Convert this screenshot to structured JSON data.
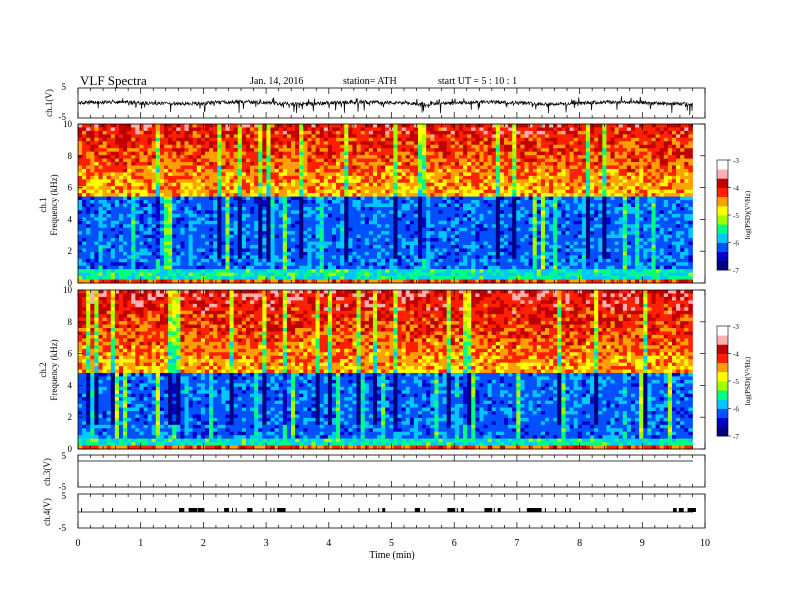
{
  "header": {
    "title": "VLF  Spectra",
    "date": "Jan. 14, 2016",
    "station": "station= ATH",
    "start_ut": "start  UT  =   5  : 10 : 1"
  },
  "chart_data": [
    {
      "id": "ch1-waveform",
      "type": "line",
      "ylabel": "ch.1(V)",
      "yticks": [
        "5",
        "-5"
      ],
      "ylim": [
        -5,
        5
      ],
      "xlim": [
        0,
        10
      ],
      "data_end_min": 9.8,
      "trace_color": "#000000"
    },
    {
      "id": "ch1-spectrogram",
      "type": "heatmap",
      "ylabel_top": "ch.1",
      "ylabel": "Frequency  (kHz)",
      "yticks": [
        "0",
        "2",
        "4",
        "6",
        "8",
        "10"
      ],
      "ylim": [
        0,
        10
      ],
      "xlim": [
        0,
        10
      ],
      "data_end_min": 9.8,
      "colorbar": {
        "label": "log(PSD)(V²/Hz)",
        "ticks": [
          "-3",
          "-4",
          "-5",
          "-6",
          "-7"
        ],
        "range": [
          -7,
          -3
        ]
      },
      "quiet_band_khz": [
        0.8,
        5.5
      ]
    },
    {
      "id": "ch2-spectrogram",
      "type": "heatmap",
      "ylabel_top": "ch.2",
      "ylabel": "Frequency  (kHz)",
      "yticks": [
        "0",
        "2",
        "4",
        "6",
        "8",
        "10"
      ],
      "ylim": [
        0,
        10
      ],
      "xlim": [
        0,
        10
      ],
      "data_end_min": 9.8,
      "colorbar": {
        "label": "log(PSD)(V²/Hz)",
        "ticks": [
          "-3",
          "-4",
          "-5",
          "-6",
          "-7"
        ],
        "range": [
          -7,
          -3
        ]
      },
      "quiet_band_khz": [
        0.6,
        4.8
      ]
    },
    {
      "id": "ch3-waveform",
      "type": "line",
      "ylabel": "ch.3(V)",
      "yticks": [
        "5",
        "-5"
      ],
      "ylim": [
        -5,
        5
      ],
      "xlim": [
        0,
        10
      ],
      "data_end_min": 9.8,
      "trace_color": "#000000"
    },
    {
      "id": "ch4-waveform",
      "type": "line",
      "ylabel": "ch.4(V)",
      "yticks": [
        "5",
        "-5"
      ],
      "ylim": [
        -5,
        5
      ],
      "xlim": [
        0,
        10
      ],
      "data_end_min": 9.8,
      "trace_color": "#000000"
    }
  ],
  "x_axis": {
    "label": "Time  (min)",
    "ticks": [
      "0",
      "1",
      "2",
      "3",
      "4",
      "5",
      "6",
      "7",
      "8",
      "9",
      "10"
    ],
    "range": [
      0,
      10
    ]
  },
  "colormap": [
    "#000080",
    "#0000c8",
    "#0050ff",
    "#00c8ff",
    "#00ff80",
    "#a0ff00",
    "#ffff00",
    "#ffa000",
    "#ff2000",
    "#c00000",
    "#ffb0b0",
    "#ffffff"
  ]
}
